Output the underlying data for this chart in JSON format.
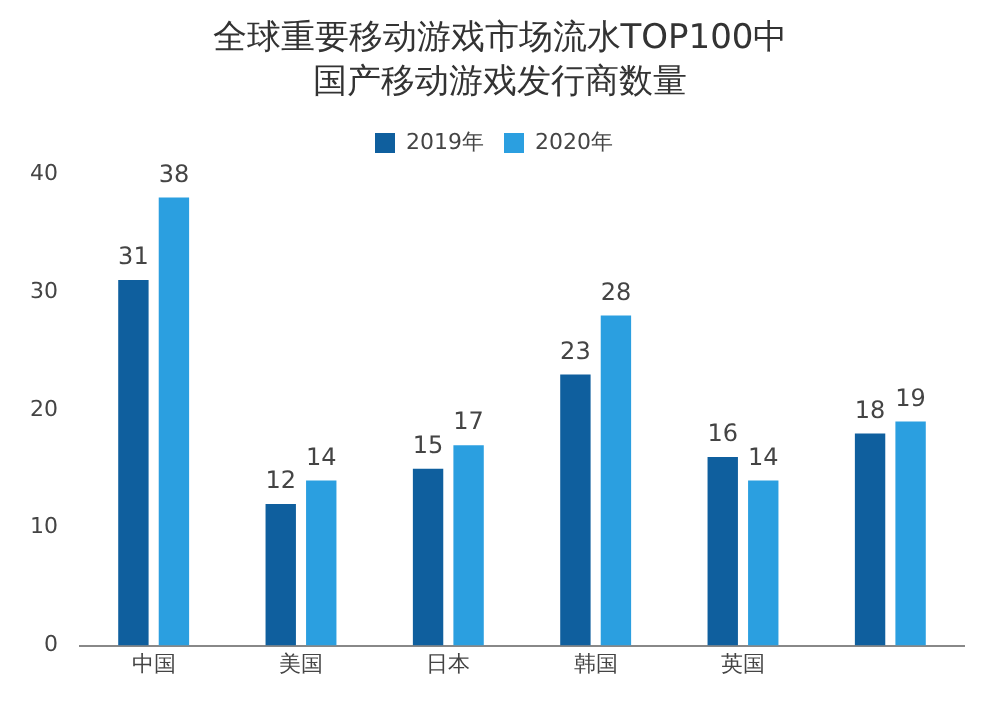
{
  "chart_data": {
    "type": "bar",
    "title": "全球重要移动游戏市场流水TOP100中国产移动游戏发行商数量",
    "categories": [
      "中国",
      "美国",
      "日本",
      "韩国",
      "英国",
      null
    ],
    "series": [
      {
        "name": "2019年",
        "color": "#0f5f9e",
        "values": [
          31,
          12,
          15,
          23,
          16,
          18
        ]
      },
      {
        "name": "2020年",
        "color": "#2b9fe0",
        "values": [
          38,
          14,
          17,
          28,
          14,
          19
        ]
      }
    ],
    "ylim": [
      0,
      40
    ],
    "yticks": [
      0,
      10,
      20,
      30,
      40
    ],
    "grid": false,
    "legend": "top",
    "data_labels": true
  }
}
